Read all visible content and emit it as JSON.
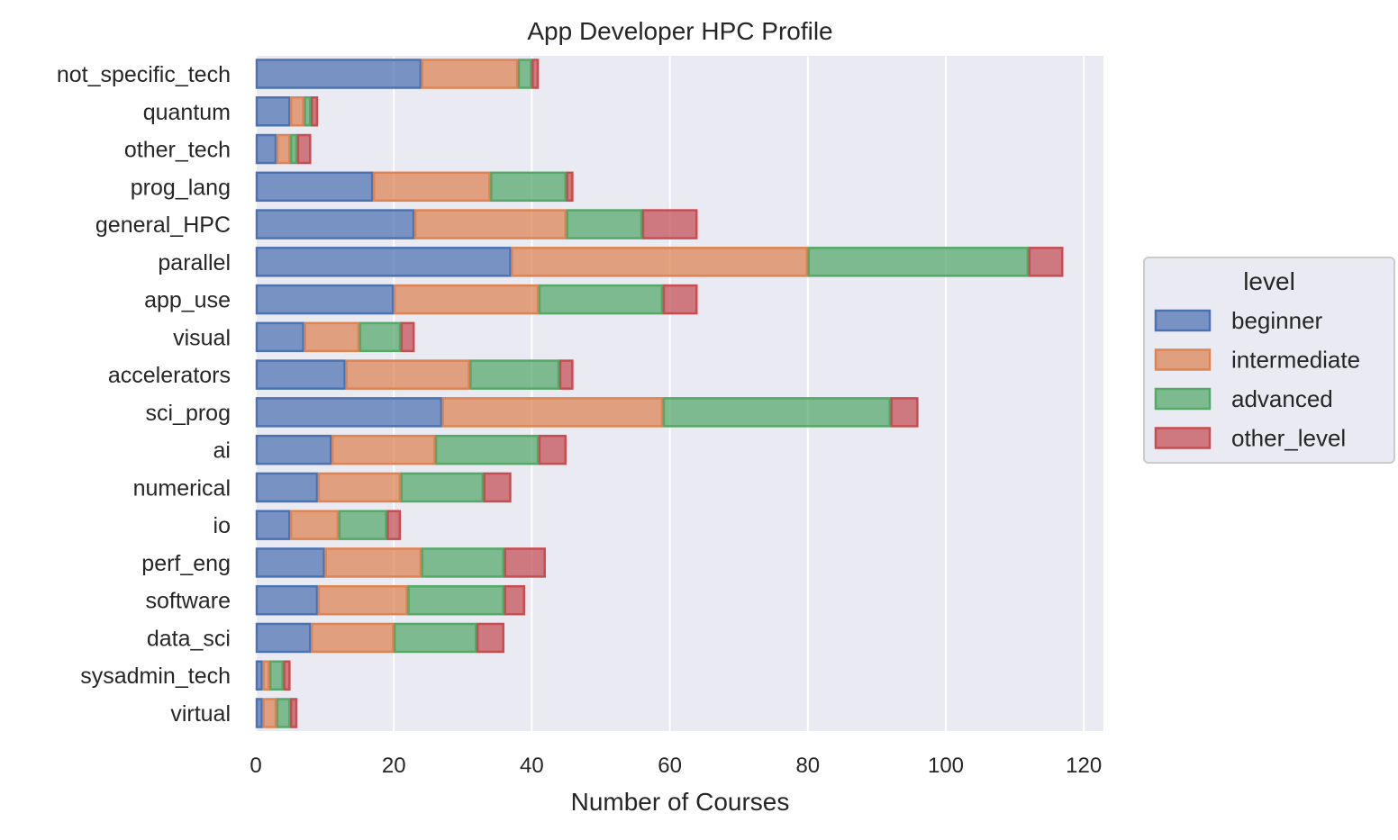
{
  "chart_data": {
    "type": "bar",
    "orientation": "horizontal",
    "stacked": true,
    "title": "App Developer HPC Profile",
    "xlabel": "Number of Courses",
    "ylabel": "",
    "xlim": [
      0,
      122.7
    ],
    "xticks": [
      0,
      20,
      40,
      60,
      80,
      100,
      120
    ],
    "grid": true,
    "legend": {
      "title": "level",
      "placement": "right"
    },
    "categories": [
      "not_specific_tech",
      "quantum",
      "other_tech",
      "prog_lang",
      "general_HPC",
      "parallel",
      "app_use",
      "visual",
      "accelerators",
      "sci_prog",
      "ai",
      "numerical",
      "io",
      "perf_eng",
      "software",
      "data_sci",
      "sysadmin_tech",
      "virtual"
    ],
    "series": [
      {
        "name": "beginner",
        "color": "#4c72b0",
        "values": [
          24,
          5,
          3,
          17,
          23,
          37,
          20,
          7,
          13,
          27,
          11,
          9,
          5,
          10,
          9,
          8,
          1,
          1
        ]
      },
      {
        "name": "intermediate",
        "color": "#dd8452",
        "values": [
          14,
          2,
          2,
          17,
          22,
          43,
          21,
          8,
          18,
          32,
          15,
          12,
          7,
          14,
          13,
          12,
          1,
          2
        ]
      },
      {
        "name": "advanced",
        "color": "#55a868",
        "values": [
          2,
          1,
          1,
          11,
          11,
          32,
          18,
          6,
          13,
          33,
          15,
          12,
          7,
          12,
          14,
          12,
          2,
          2
        ]
      },
      {
        "name": "other_level",
        "color": "#c44e52",
        "values": [
          1,
          1,
          2,
          1,
          8,
          5,
          5,
          2,
          2,
          4,
          4,
          4,
          2,
          6,
          3,
          4,
          1,
          1
        ]
      }
    ],
    "background": "#eaeaf2"
  }
}
